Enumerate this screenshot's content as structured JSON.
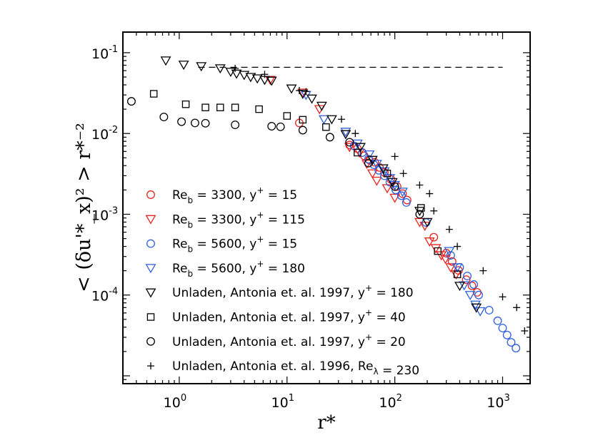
{
  "chart_data": {
    "type": "scatter",
    "xscale": "log",
    "yscale": "log",
    "xlim": [
      0.3,
      1800
    ],
    "ylim": [
      8e-06,
      0.18
    ],
    "xlabel": "r*",
    "ylabel": "< (δu'*_x)² > r*⁻²",
    "x_ticks": [
      {
        "base": "10",
        "exp": "0"
      },
      {
        "base": "10",
        "exp": "1"
      },
      {
        "base": "10",
        "exp": "2"
      },
      {
        "base": "10",
        "exp": "3"
      }
    ],
    "y_ticks": [
      {
        "base": "10",
        "exp": "-4"
      },
      {
        "base": "10",
        "exp": "-3"
      },
      {
        "base": "10",
        "exp": "-2"
      },
      {
        "base": "10",
        "exp": "-1"
      }
    ],
    "reference_line": {
      "y": 0.066,
      "x_range": [
        1.5,
        1000
      ],
      "style": "dashed"
    },
    "series": [
      {
        "name": "Re_b = 3300, y+ = 15",
        "label_main": "Re",
        "label_sub": "b",
        "label_mid": " = 3300, y",
        "label_sup": "+",
        "label_end": " = 15",
        "marker": "circle",
        "color": "#e8231f",
        "x": [
          13,
          38,
          45,
          52,
          58,
          65,
          72,
          80,
          92,
          105,
          118,
          130,
          230,
          300,
          340,
          390,
          460,
          520,
          580
        ],
        "y": [
          0.0135,
          0.0072,
          0.0065,
          0.0053,
          0.0047,
          0.0044,
          0.0038,
          0.0033,
          0.0027,
          0.0022,
          0.0018,
          0.0015,
          0.00052,
          0.00033,
          0.00026,
          0.000202,
          0.000155,
          0.00013,
          0.000108
        ]
      },
      {
        "name": "Re_b = 3300, y+ = 115",
        "label_main": "Re",
        "label_sub": "b",
        "label_mid": " = 3300, y",
        "label_sup": "+",
        "label_end": " = 115",
        "marker": "triangle-down",
        "color": "#e8231f",
        "x": [
          7,
          14,
          20,
          38,
          47,
          55,
          62,
          68,
          85,
          100,
          170,
          190,
          210,
          240,
          270,
          295,
          330,
          370
        ],
        "y": [
          0.046,
          0.032,
          0.02,
          0.0068,
          0.0058,
          0.0042,
          0.0032,
          0.0026,
          0.0021,
          0.0016,
          0.0008,
          0.00072,
          0.00046,
          0.00038,
          0.00031,
          0.00028,
          0.00022,
          0.00018
        ]
      },
      {
        "name": "Re_b = 5600, y+ = 15",
        "label_main": "Re",
        "label_sub": "b",
        "label_mid": " = 5600, y",
        "label_sup": "+",
        "label_end": " = 15",
        "marker": "circle",
        "color": "#2f5fdc",
        "x": [
          42,
          50,
          57,
          64,
          71,
          80,
          90,
          102,
          115,
          128,
          195,
          330,
          400,
          470,
          540,
          600,
          750,
          900,
          1000,
          1100,
          1200,
          1330
        ],
        "y": [
          0.007,
          0.0058,
          0.0048,
          0.0041,
          0.0035,
          0.003,
          0.0025,
          0.002,
          0.0017,
          0.0014,
          0.00079,
          0.00031,
          0.00022,
          0.000172,
          0.000135,
          0.0001,
          6.5e-05,
          4.8e-05,
          3.9e-05,
          3.2e-05,
          2.6e-05,
          2.2e-05
        ]
      },
      {
        "name": "Re_b = 5600, y+ = 180",
        "label_main": "Re",
        "label_sub": "b",
        "label_mid": " = 5600, y",
        "label_sup": "+",
        "label_end": " = 180",
        "marker": "triangle-down",
        "color": "#2f5fdc",
        "x": [
          15,
          22,
          35,
          45,
          58,
          68,
          80,
          90,
          100,
          118,
          320,
          380,
          440,
          500,
          560,
          620
        ],
        "y": [
          0.03,
          0.015,
          0.0105,
          0.0075,
          0.0055,
          0.0042,
          0.0034,
          0.0028,
          0.0023,
          0.0019,
          0.00035,
          0.00022,
          0.000132,
          0.0001,
          7.6e-05,
          6.3e-05
        ]
      },
      {
        "name": "Unladen, Antonia et. al. 1997, y+ = 180",
        "label_main": "Unladen, Antonia et. al. 1997, y",
        "label_sup": "+",
        "label_end": " = 180",
        "marker": "triangle-down",
        "color": "#000000",
        "x": [
          0.75,
          1.1,
          1.6,
          2.4,
          3.0,
          3.4,
          4.0,
          4.6,
          5.3,
          6.2,
          7.2,
          11,
          14,
          17,
          21,
          26,
          35,
          48,
          62,
          78,
          95,
          170,
          200,
          400,
          570
        ],
        "y": [
          0.08,
          0.071,
          0.068,
          0.064,
          0.058,
          0.055,
          0.053,
          0.05,
          0.048,
          0.046,
          0.045,
          0.036,
          0.031,
          0.027,
          0.022,
          0.015,
          0.0098,
          0.0068,
          0.0047,
          0.0037,
          0.0025,
          0.0011,
          0.0008,
          0.00013,
          7e-05
        ]
      },
      {
        "name": "Unladen, Antonia et. al. 1997, y+ = 40",
        "label_main": "Unladen, Antonia et. al. 1997, y",
        "label_sup": "+",
        "label_end": " = 40",
        "marker": "square",
        "color": "#000000",
        "x": [
          0.58,
          1.15,
          1.75,
          2.4,
          3.3,
          5.5,
          10,
          14,
          23,
          45,
          85,
          175,
          250,
          380
        ],
        "y": [
          0.031,
          0.023,
          0.021,
          0.021,
          0.021,
          0.02,
          0.0165,
          0.0148,
          0.012,
          0.0058,
          0.0032,
          0.0012,
          0.00035,
          0.00018
        ]
      },
      {
        "name": "Unladen, Antonia et. al. 1997, y+ = 20",
        "label_main": "Unladen, Antonia et. al. 1997, y",
        "label_sup": "+",
        "label_end": " = 20",
        "marker": "circle",
        "color": "#000000",
        "x": [
          0.36,
          0.72,
          1.05,
          1.4,
          1.75,
          3.3,
          7.2,
          8.7,
          14,
          25,
          38,
          57,
          100,
          170
        ],
        "y": [
          0.025,
          0.016,
          0.014,
          0.0135,
          0.0134,
          0.0128,
          0.0123,
          0.0121,
          0.011,
          0.009,
          0.0078,
          0.0043,
          0.0022,
          0.001
        ]
      },
      {
        "name": "Unladen, Antonia et. al. 1996, Re_λ = 230",
        "label_main": "Unladen, Antonia et. al. 1996, Re",
        "label_sub": "λ",
        "label_end": " = 230",
        "marker": "plus",
        "color": "#000000",
        "x": [
          3.3,
          6.2,
          13,
          15,
          32,
          43,
          100,
          120,
          170,
          210,
          230,
          320,
          380,
          660,
          1000,
          1350,
          1600
        ],
        "y": [
          0.064,
          0.054,
          0.034,
          0.033,
          0.015,
          0.01,
          0.0052,
          0.0032,
          0.0023,
          0.0018,
          0.0011,
          0.00065,
          0.0004,
          0.0002,
          9.5e-05,
          7e-05,
          3.6e-05
        ]
      }
    ]
  }
}
